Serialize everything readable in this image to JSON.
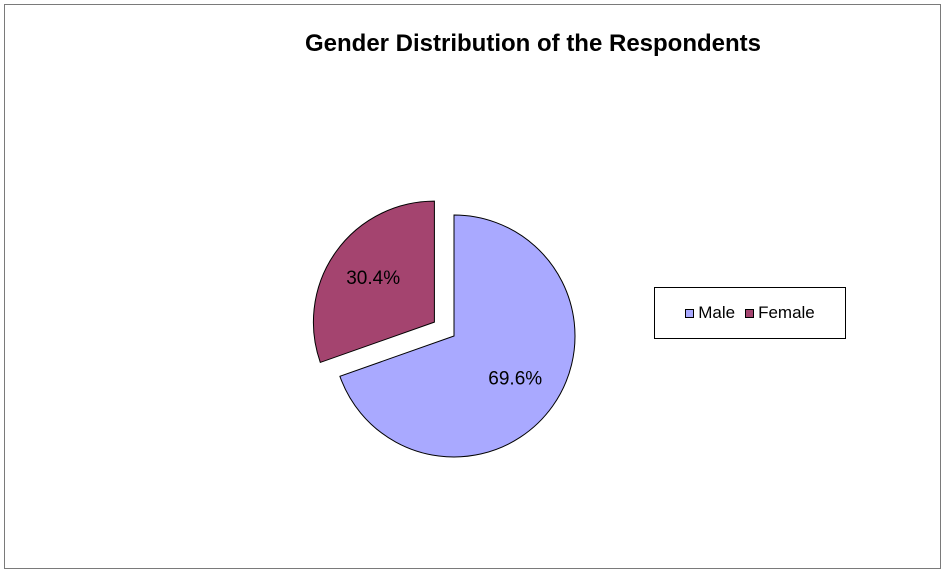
{
  "chart_data": {
    "type": "pie",
    "title": "Gender Distribution of the Respondents",
    "categories": [
      "Male",
      "Female"
    ],
    "values": [
      69.6,
      30.4
    ],
    "labels": [
      "69.6%",
      "30.4%"
    ],
    "exploded": [
      "Female"
    ],
    "colors": [
      "#a9a9ff",
      "#a4446f"
    ],
    "legend_position": "right"
  }
}
